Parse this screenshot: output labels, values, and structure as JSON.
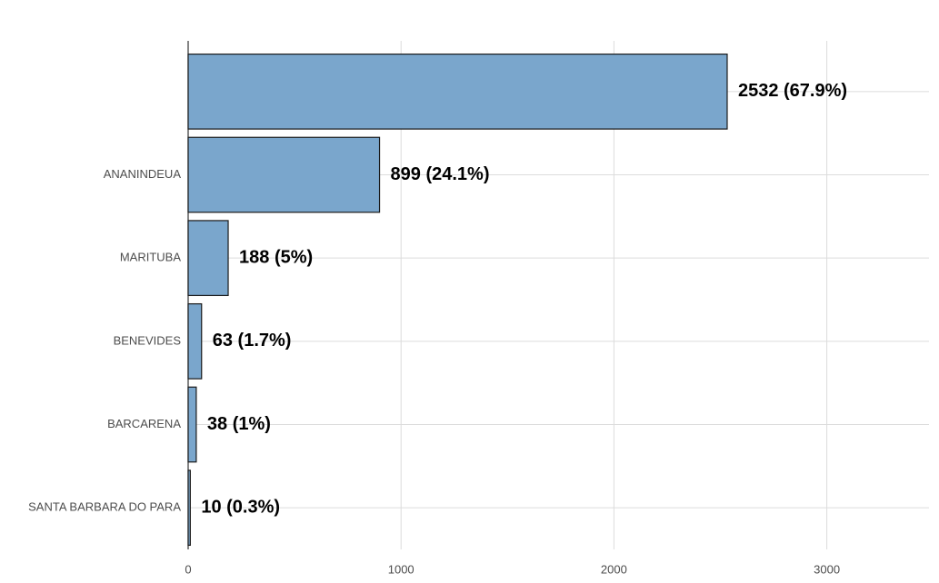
{
  "chart_data": {
    "type": "hbar",
    "categories": [
      null,
      "ANANINDEUA",
      "MARITUBA",
      "BENEVIDES",
      "BARCARENA",
      "SANTA BARBARA DO PARA"
    ],
    "values": [
      2532,
      899,
      188,
      63,
      38,
      10
    ],
    "value_labels": [
      "2532 (67.9%)",
      "899 (24.1%)",
      "188 (5%)",
      "63 (1.7%)",
      "38 (1%)",
      "10 (0.3%)"
    ],
    "color": "#7aa6cc",
    "xlim": [
      0,
      3480
    ],
    "xticks": [
      0,
      1000,
      2000,
      3000
    ],
    "grid": true
  }
}
